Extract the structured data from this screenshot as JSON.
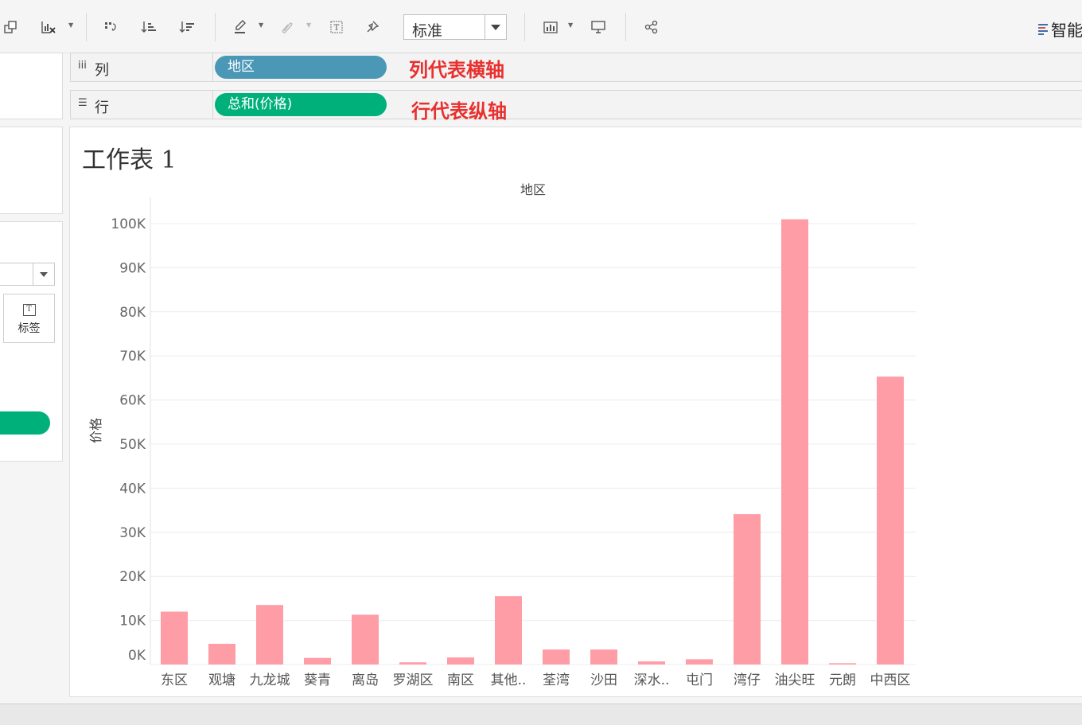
{
  "toolbar": {
    "standard_select": "标准",
    "smart_label": "智能",
    "icons": [
      "duplicate-sheet-icon",
      "clear-sheet-icon",
      "swap-rows-columns-icon",
      "sort-ascending-icon",
      "sort-descending-icon",
      "highlight-icon",
      "group-icon",
      "label-text-icon",
      "pin-icon",
      "show-me-chart-icon",
      "presentation-icon",
      "share-icon"
    ]
  },
  "left_panel": {
    "mark_label_card": "标签"
  },
  "shelves": {
    "columns": {
      "label": "列",
      "pill": "地区",
      "pill_color": "#4a97b6",
      "annotation": "列代表横轴"
    },
    "rows": {
      "label": "行",
      "pill": "总和(价格)",
      "pill_color": "#00b07a",
      "annotation": "行代表纵轴"
    }
  },
  "worksheet": {
    "title": "工作表 1"
  },
  "chart_data": {
    "type": "bar",
    "title": "",
    "xlabel": "地区",
    "ylabel": "价格",
    "categories": [
      "东区",
      "观塘",
      "九龙城",
      "葵青",
      "离岛",
      "罗湖区",
      "南区",
      "其他..",
      "荃湾",
      "沙田",
      "深水..",
      "屯门",
      "湾仔",
      "油尖旺",
      "元朗",
      "中西区"
    ],
    "values": [
      12000,
      4700,
      13500,
      1500,
      11300,
      500,
      1600,
      15500,
      3400,
      3400,
      700,
      1200,
      34100,
      101000,
      300,
      65300
    ],
    "ylim": [
      0,
      100000
    ],
    "yticks": [
      "0K",
      "10K",
      "20K",
      "30K",
      "40K",
      "50K",
      "60K",
      "70K",
      "80K",
      "90K",
      "100K"
    ],
    "bar_color": "#ff9da7",
    "grid": true
  }
}
